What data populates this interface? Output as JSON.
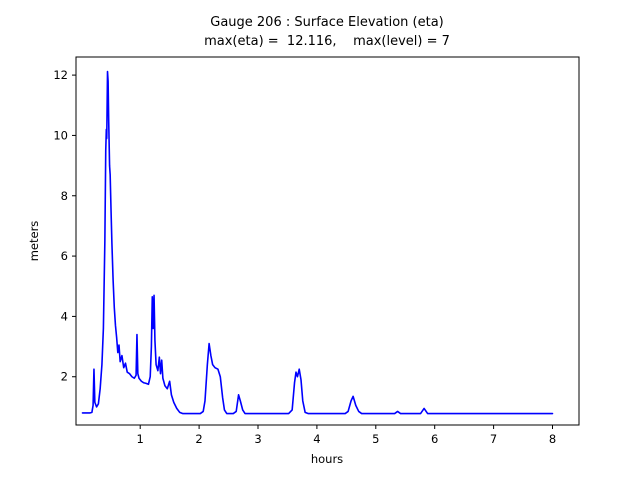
{
  "figure": {
    "background": "#ffffff"
  },
  "chart_data": {
    "type": "line",
    "title": "Gauge 206 : Surface Elevation (eta)",
    "subtitle": "max(eta) =  12.116,    max(level) = 7",
    "xlabel": "hours",
    "ylabel": "meters",
    "max_eta": 12.116,
    "max_level": 7,
    "line_color": "#0000ff",
    "axis_color": "#000000",
    "x_ticks": [
      1,
      2,
      3,
      4,
      5,
      6,
      7,
      8
    ],
    "y_ticks": [
      2,
      4,
      6,
      8,
      10,
      12
    ],
    "xlim": [
      -0.09,
      8.45
    ],
    "ylim": [
      0.4,
      12.6
    ],
    "grid": false,
    "legend": null,
    "points": [
      [
        0.02,
        0.8
      ],
      [
        0.15,
        0.8
      ],
      [
        0.18,
        0.82
      ],
      [
        0.2,
        1.05
      ],
      [
        0.215,
        2.25
      ],
      [
        0.23,
        1.15
      ],
      [
        0.26,
        1.0
      ],
      [
        0.29,
        1.1
      ],
      [
        0.32,
        1.6
      ],
      [
        0.35,
        2.4
      ],
      [
        0.375,
        3.6
      ],
      [
        0.4,
        6.5
      ],
      [
        0.415,
        9.5
      ],
      [
        0.425,
        10.2
      ],
      [
        0.432,
        9.9
      ],
      [
        0.445,
        12.116
      ],
      [
        0.455,
        11.8
      ],
      [
        0.465,
        10.5
      ],
      [
        0.48,
        9.0
      ],
      [
        0.49,
        8.7
      ],
      [
        0.505,
        7.5
      ],
      [
        0.52,
        6.4
      ],
      [
        0.54,
        5.2
      ],
      [
        0.56,
        4.3
      ],
      [
        0.58,
        3.7
      ],
      [
        0.6,
        3.3
      ],
      [
        0.62,
        2.8
      ],
      [
        0.64,
        3.05
      ],
      [
        0.66,
        2.5
      ],
      [
        0.69,
        2.7
      ],
      [
        0.72,
        2.3
      ],
      [
        0.75,
        2.45
      ],
      [
        0.78,
        2.15
      ],
      [
        0.82,
        2.1
      ],
      [
        0.86,
        2.0
      ],
      [
        0.9,
        1.95
      ],
      [
        0.93,
        2.05
      ],
      [
        0.945,
        3.4
      ],
      [
        0.96,
        2.1
      ],
      [
        0.98,
        1.95
      ],
      [
        1.02,
        1.85
      ],
      [
        1.06,
        1.8
      ],
      [
        1.1,
        1.78
      ],
      [
        1.14,
        1.75
      ],
      [
        1.17,
        2.0
      ],
      [
        1.19,
        3.0
      ],
      [
        1.205,
        4.65
      ],
      [
        1.22,
        3.6
      ],
      [
        1.235,
        4.7
      ],
      [
        1.25,
        3.2
      ],
      [
        1.27,
        2.4
      ],
      [
        1.3,
        2.2
      ],
      [
        1.325,
        2.65
      ],
      [
        1.345,
        2.1
      ],
      [
        1.365,
        2.55
      ],
      [
        1.385,
        1.95
      ],
      [
        1.42,
        1.7
      ],
      [
        1.46,
        1.6
      ],
      [
        1.5,
        1.85
      ],
      [
        1.53,
        1.4
      ],
      [
        1.57,
        1.15
      ],
      [
        1.62,
        0.95
      ],
      [
        1.67,
        0.82
      ],
      [
        1.72,
        0.78
      ],
      [
        2.02,
        0.78
      ],
      [
        2.07,
        0.85
      ],
      [
        2.1,
        1.2
      ],
      [
        2.14,
        2.4
      ],
      [
        2.17,
        3.1
      ],
      [
        2.2,
        2.7
      ],
      [
        2.23,
        2.4
      ],
      [
        2.27,
        2.3
      ],
      [
        2.32,
        2.25
      ],
      [
        2.36,
        2.0
      ],
      [
        2.4,
        1.3
      ],
      [
        2.43,
        0.9
      ],
      [
        2.47,
        0.78
      ],
      [
        2.58,
        0.78
      ],
      [
        2.63,
        0.85
      ],
      [
        2.67,
        1.4
      ],
      [
        2.7,
        1.2
      ],
      [
        2.74,
        0.9
      ],
      [
        2.78,
        0.78
      ],
      [
        3.52,
        0.78
      ],
      [
        3.58,
        0.9
      ],
      [
        3.62,
        1.8
      ],
      [
        3.645,
        2.15
      ],
      [
        3.67,
        2.0
      ],
      [
        3.7,
        2.25
      ],
      [
        3.73,
        1.9
      ],
      [
        3.76,
        1.2
      ],
      [
        3.8,
        0.82
      ],
      [
        3.85,
        0.78
      ],
      [
        4.48,
        0.78
      ],
      [
        4.53,
        0.85
      ],
      [
        4.58,
        1.2
      ],
      [
        4.615,
        1.35
      ],
      [
        4.66,
        1.05
      ],
      [
        4.71,
        0.85
      ],
      [
        4.76,
        0.78
      ],
      [
        5.32,
        0.78
      ],
      [
        5.37,
        0.85
      ],
      [
        5.42,
        0.78
      ],
      [
        5.76,
        0.78
      ],
      [
        5.82,
        0.95
      ],
      [
        5.88,
        0.78
      ],
      [
        8.0,
        0.78
      ]
    ]
  }
}
